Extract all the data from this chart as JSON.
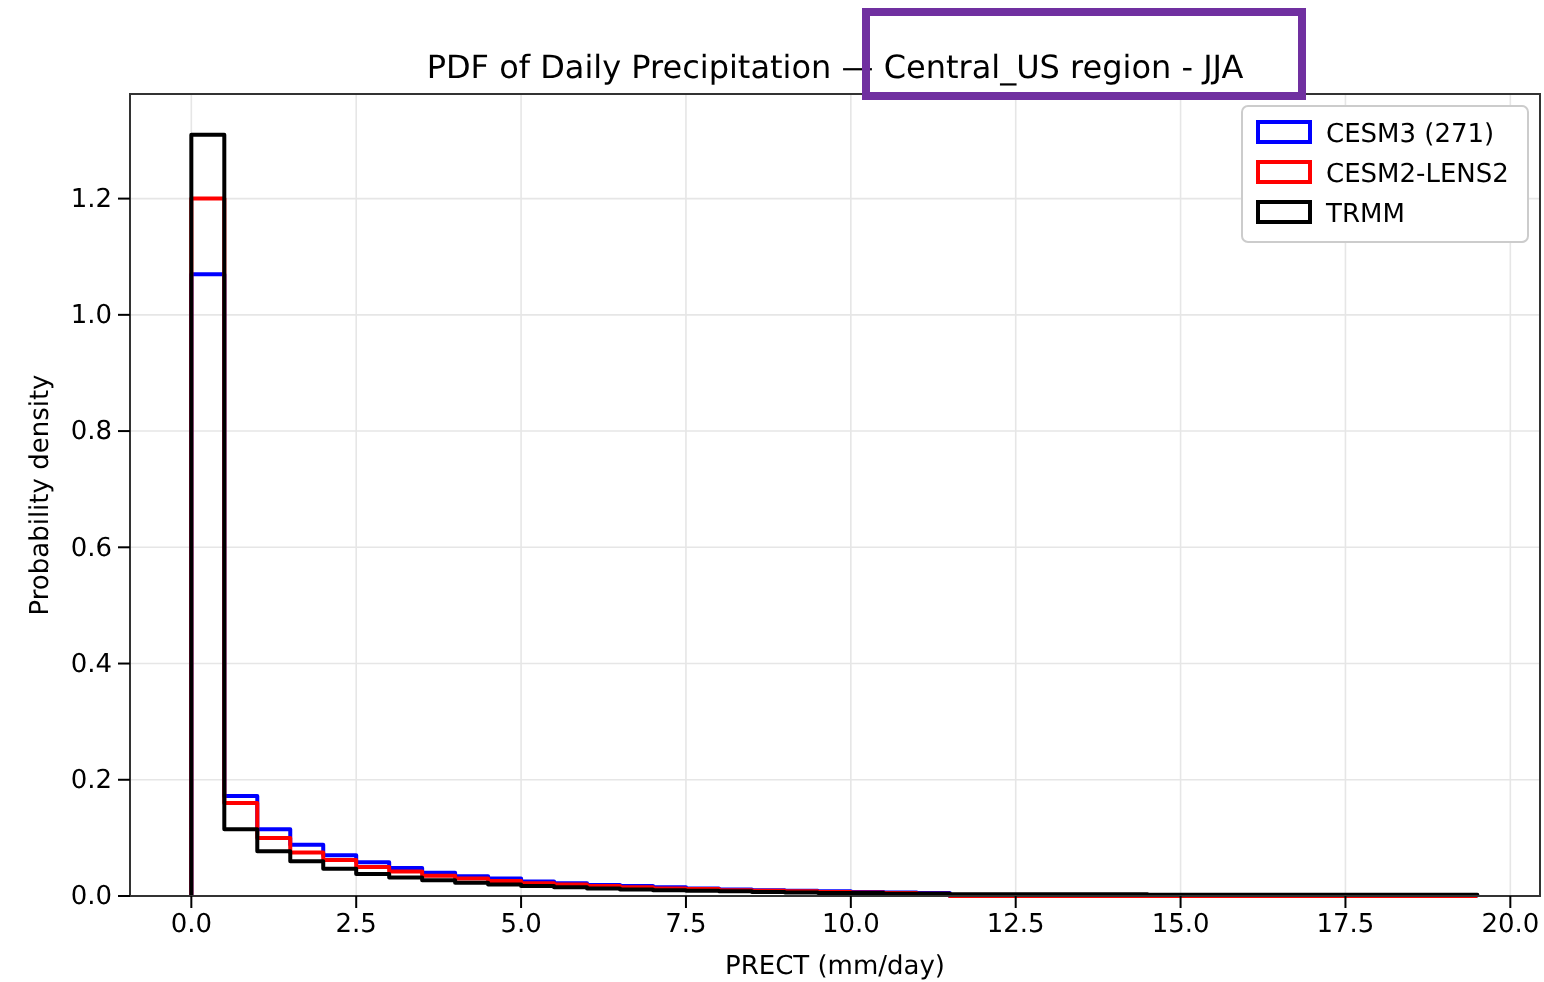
{
  "chart_data": {
    "type": "histogram",
    "title": "PDF of Daily Precipitation — Central_US region - JJA",
    "xlabel": "PRECT (mm/day)",
    "ylabel": "Probability density",
    "bins": [
      0,
      0.5,
      1,
      1.5,
      2,
      2.5,
      3,
      3.5,
      4,
      4.5,
      5,
      5.5,
      6,
      6.5,
      7,
      7.5,
      8,
      8.5,
      9,
      9.5,
      10,
      10.5,
      11,
      11.5,
      12,
      12.5,
      13,
      13.5,
      14,
      14.5,
      15,
      15.5,
      16,
      16.5,
      17,
      17.5,
      18,
      18.5,
      19,
      19.5
    ],
    "series": [
      {
        "name": "CESM3 (271)",
        "color": "#0000ff",
        "values": [
          1.07,
          0.172,
          0.115,
          0.088,
          0.07,
          0.058,
          0.048,
          0.04,
          0.034,
          0.03,
          0.025,
          0.022,
          0.019,
          0.017,
          0.015,
          0.013,
          0.011,
          0.01,
          0.009,
          0.008,
          0.007,
          0.006,
          0.005,
          0,
          0,
          0,
          0,
          0,
          0,
          0,
          0,
          0,
          0,
          0,
          0,
          0,
          0,
          0,
          0
        ]
      },
      {
        "name": "CESM2-LENS2",
        "color": "#ff0000",
        "values": [
          1.2,
          0.16,
          0.1,
          0.075,
          0.062,
          0.05,
          0.042,
          0.035,
          0.03,
          0.026,
          0.022,
          0.02,
          0.017,
          0.015,
          0.013,
          0.012,
          0.01,
          0.009,
          0.008,
          0.007,
          0.006,
          0.005,
          0.004,
          0,
          0,
          0,
          0,
          0,
          0,
          0,
          0,
          0,
          0,
          0,
          0,
          0,
          0,
          0,
          0
        ]
      },
      {
        "name": "TRMM",
        "color": "#000000",
        "values": [
          1.31,
          0.115,
          0.077,
          0.06,
          0.047,
          0.038,
          0.032,
          0.027,
          0.023,
          0.02,
          0.017,
          0.015,
          0.013,
          0.011,
          0.01,
          0.009,
          0.008,
          0.007,
          0.006,
          0.005,
          0.005,
          0.004,
          0.004,
          0.003,
          0.003,
          0.003,
          0.003,
          0.003,
          0.003,
          0.002,
          0.002,
          0.002,
          0.002,
          0.002,
          0.002,
          0.002,
          0.002,
          0.002,
          0.002
        ]
      }
    ],
    "xlim": [
      -0.93,
      20.45
    ],
    "ylim": [
      0,
      1.38
    ],
    "xticks": [
      {
        "value": 0,
        "label": "0.0"
      },
      {
        "value": 2.5,
        "label": "2.5"
      },
      {
        "value": 5,
        "label": "5.0"
      },
      {
        "value": 7.5,
        "label": "7.5"
      },
      {
        "value": 10,
        "label": "10.0"
      },
      {
        "value": 12.5,
        "label": "12.5"
      },
      {
        "value": 15,
        "label": "15.0"
      },
      {
        "value": 17.5,
        "label": "17.5"
      },
      {
        "value": 20,
        "label": "20.0"
      }
    ],
    "yticks": [
      {
        "value": 0,
        "label": "0.0"
      },
      {
        "value": 0.2,
        "label": "0.2"
      },
      {
        "value": 0.4,
        "label": "0.4"
      },
      {
        "value": 0.6,
        "label": "0.6"
      },
      {
        "value": 0.8,
        "label": "0.8"
      },
      {
        "value": 1,
        "label": "1.0"
      },
      {
        "value": 1.2,
        "label": "1.2"
      }
    ],
    "grid": true,
    "legend": "top right"
  }
}
